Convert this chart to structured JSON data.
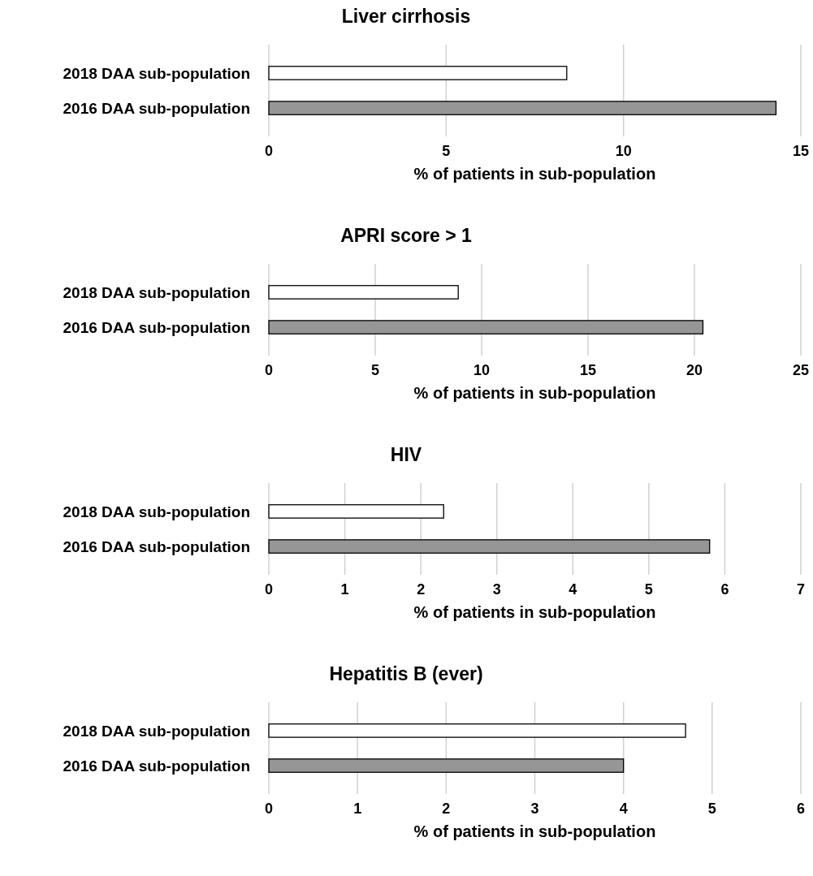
{
  "chart_data": [
    {
      "type": "bar",
      "orientation": "horizontal",
      "title": "Liver cirrhosis",
      "xlabel": "% of patients in sub-population",
      "categories": [
        "2018 DAA sub-population",
        "2016 DAA sub-population"
      ],
      "values": [
        8.4,
        14.3
      ],
      "colors": [
        "#ffffff",
        "#969696"
      ],
      "xlim": [
        0,
        15
      ],
      "xticks": [
        0,
        5,
        10,
        15
      ],
      "grid": "x"
    },
    {
      "type": "bar",
      "orientation": "horizontal",
      "title": "APRI score > 1",
      "xlabel": "% of patients in sub-population",
      "categories": [
        "2018 DAA sub-population",
        "2016 DAA sub-population"
      ],
      "values": [
        8.9,
        20.4
      ],
      "colors": [
        "#ffffff",
        "#969696"
      ],
      "xlim": [
        0,
        25
      ],
      "xticks": [
        0,
        5,
        10,
        15,
        20,
        25
      ],
      "grid": "x"
    },
    {
      "type": "bar",
      "orientation": "horizontal",
      "title": "HIV",
      "xlabel": "% of patients in sub-population",
      "categories": [
        "2018 DAA sub-population",
        "2016 DAA sub-population"
      ],
      "values": [
        2.3,
        5.8
      ],
      "colors": [
        "#ffffff",
        "#969696"
      ],
      "xlim": [
        0,
        7
      ],
      "xticks": [
        0,
        1,
        2,
        3,
        4,
        5,
        6,
        7
      ],
      "grid": "x"
    },
    {
      "type": "bar",
      "orientation": "horizontal",
      "title": "Hepatitis B (ever)",
      "xlabel": "% of patients in sub-population",
      "categories": [
        "2018 DAA sub-population",
        "2016 DAA sub-population"
      ],
      "values": [
        4.7,
        4.0
      ],
      "colors": [
        "#ffffff",
        "#969696"
      ],
      "xlim": [
        0,
        6
      ],
      "xticks": [
        0,
        1,
        2,
        3,
        4,
        5,
        6
      ],
      "grid": "x"
    }
  ]
}
